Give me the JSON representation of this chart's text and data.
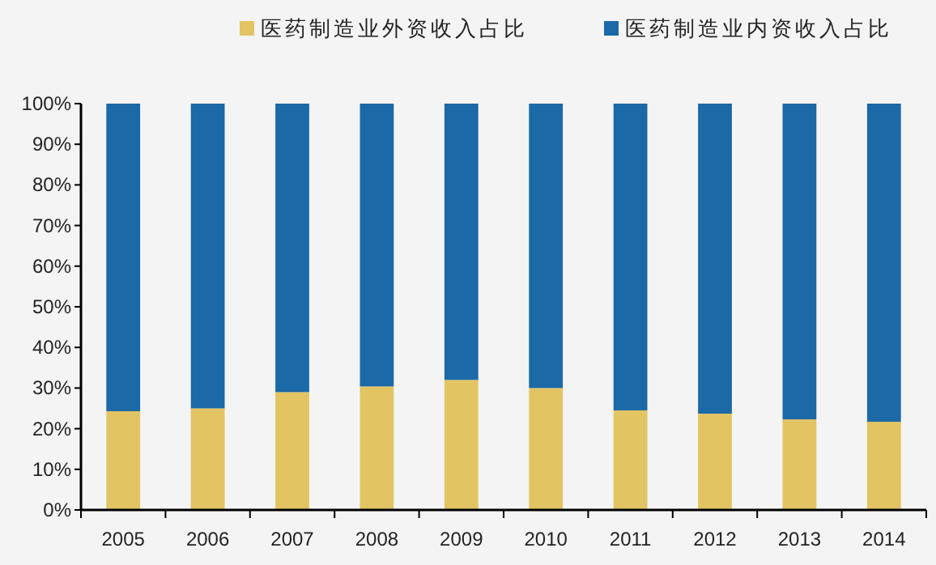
{
  "chart_data": {
    "type": "bar",
    "stacked": true,
    "legend": "top",
    "grid": false,
    "categories": [
      "2005",
      "2006",
      "2007",
      "2008",
      "2009",
      "2010",
      "2011",
      "2012",
      "2013",
      "2014"
    ],
    "series": [
      {
        "name": "医药制造业外资收入占比",
        "color": "#e3c462",
        "values": [
          24.3,
          25,
          29,
          30.4,
          32,
          30,
          24.5,
          23.7,
          22.3,
          21.7
        ]
      },
      {
        "name": "医药制造业内资收入占比",
        "color": "#1b69a6",
        "values": [
          75.7,
          75,
          71,
          69.6,
          68,
          70,
          75.5,
          76.3,
          77.7,
          78.3
        ]
      }
    ],
    "ylim": [
      0,
      100
    ],
    "yticks": [
      {
        "value": 0,
        "label": "0%"
      },
      {
        "value": 10,
        "label": "10%"
      },
      {
        "value": 20,
        "label": "20%"
      },
      {
        "value": 30,
        "label": "30%"
      },
      {
        "value": 40,
        "label": "40%"
      },
      {
        "value": 50,
        "label": "50%"
      },
      {
        "value": 60,
        "label": "60%"
      },
      {
        "value": 70,
        "label": "70%"
      },
      {
        "value": 80,
        "label": "80%"
      },
      {
        "value": 90,
        "label": "90%"
      },
      {
        "value": 100,
        "label": "100%"
      }
    ]
  }
}
